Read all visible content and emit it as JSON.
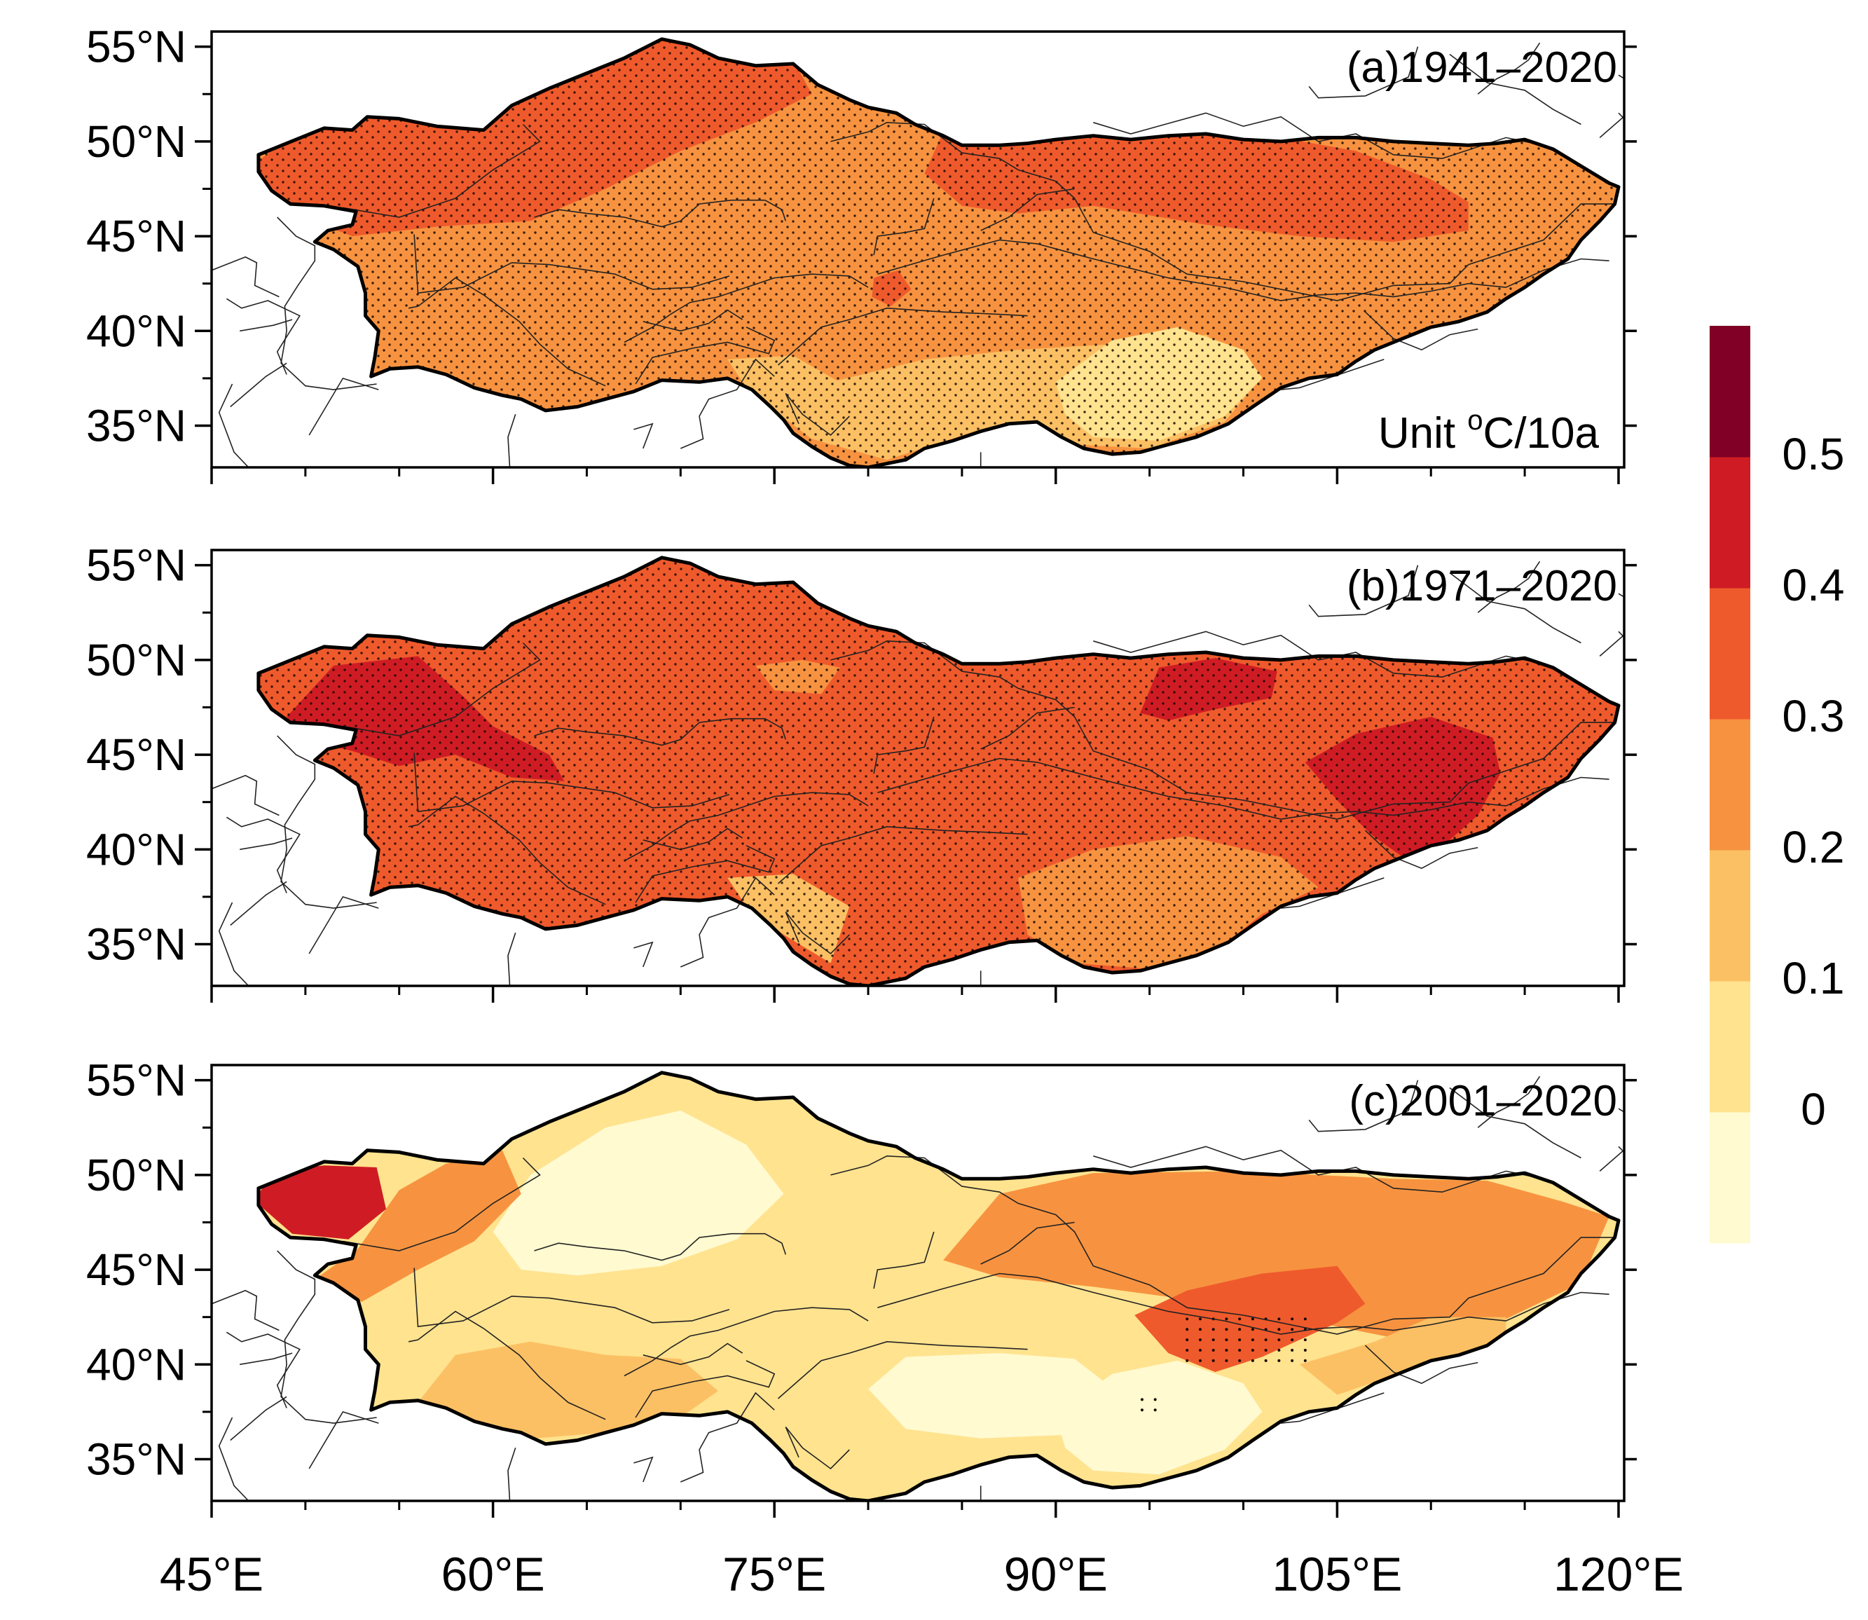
{
  "figure": {
    "panels": [
      {
        "id": "a",
        "label": "(a)1941–2020",
        "unit_prefix": "Unit ",
        "unit_superscript": "o",
        "unit_suffix": "C/10a",
        "base_class": 3,
        "zones": [
          {
            "name": "north-west-band",
            "class": 4
          },
          {
            "name": "eastern-mongolia-band",
            "class": 4
          },
          {
            "name": "tarim-spot",
            "class": 4
          },
          {
            "name": "tibet-south-zone",
            "class": 2
          },
          {
            "name": "qaidam-zone",
            "class": 1
          },
          {
            "name": "pamir-zone",
            "class": 2
          }
        ],
        "stippling": "most"
      },
      {
        "id": "b",
        "label": "(b)1971–2020",
        "unit_prefix": "",
        "unit_superscript": "",
        "unit_suffix": "",
        "base_class": 4,
        "zones": [
          {
            "name": "caspian-hotspot",
            "class": 5
          },
          {
            "name": "altai-hotspot",
            "class": 5
          },
          {
            "name": "inner-mongolia-hotspot",
            "class": 5
          },
          {
            "name": "kazakh-steppe-patch",
            "class": 3
          },
          {
            "name": "qaidam-zone",
            "class": 3
          },
          {
            "name": "pamir-zone",
            "class": 2
          },
          {
            "name": "tibet-east-zone",
            "class": 3
          }
        ],
        "stippling": "most"
      },
      {
        "id": "c",
        "label": "(c)2001–2020",
        "unit_prefix": "",
        "unit_superscript": "",
        "unit_suffix": "",
        "base_class": 1,
        "zones": [
          {
            "name": "central-kazakh-zone",
            "class": 0
          },
          {
            "name": "tarim-zone",
            "class": 0
          },
          {
            "name": "qaidam-zone",
            "class": 0
          },
          {
            "name": "west-edge-zone",
            "class": 3
          },
          {
            "name": "east-mongolia-zone",
            "class": 3
          },
          {
            "name": "hexi-corridor-zone",
            "class": 4
          },
          {
            "name": "far-west-hotspot",
            "class": 5
          },
          {
            "name": "southwest-zone",
            "class": 2
          },
          {
            "name": "east-gobi-zone",
            "class": 2
          }
        ],
        "stippling": "sparse"
      }
    ],
    "y_tick_labels": [
      "55°N",
      "50°N",
      "45°N",
      "40°N",
      "35°N"
    ],
    "x_tick_labels": [
      "45°E",
      "60°E",
      "75°E",
      "90°E",
      "105°E",
      "120°E"
    ],
    "colorbar": {
      "colors": [
        "#fffad0",
        "#ffe38f",
        "#fcc064",
        "#f79340",
        "#ef5a2c",
        "#cf1c24",
        "#800026"
      ],
      "tick_labels": [
        "0",
        "0.1",
        "0.2",
        "0.3",
        "0.4",
        "0.5"
      ]
    }
  }
}
